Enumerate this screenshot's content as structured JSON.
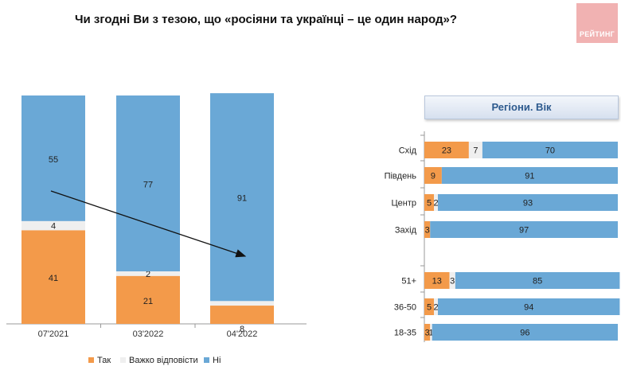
{
  "title": "Чи згодні Ви з тезою, що «росіяни та українці – це один народ»?",
  "logo": {
    "text": "РЕЙТИНГ"
  },
  "colors": {
    "yes": "#f39a4a",
    "hard": "#efefef",
    "no": "#6aa8d6",
    "axis": "#999999"
  },
  "chart_data": [
    {
      "type": "bar",
      "stacked": true,
      "categories": [
        "07'2021",
        "03'2022",
        "04'2022"
      ],
      "series": [
        {
          "name": "Так",
          "values": [
            41,
            21,
            8
          ]
        },
        {
          "name": "Важко відповісти",
          "values": [
            4,
            2,
            2
          ]
        },
        {
          "name": "Ні",
          "values": [
            55,
            77,
            91
          ]
        }
      ],
      "ylim": [
        0,
        100
      ],
      "legend": {
        "position": "bottom",
        "items": [
          "Так",
          "Важко відповісти",
          "Ні"
        ]
      },
      "annotation": "trend-arrow"
    },
    {
      "type": "bar",
      "orientation": "horizontal",
      "stacked": true,
      "title": "Регіони. Вік",
      "categories": [
        "Схід",
        "Південь",
        "Центр",
        "Захід",
        "51+",
        "36-50",
        "18-35"
      ],
      "groups": [
        [
          "Схід",
          "Південь",
          "Центр",
          "Захід"
        ],
        [
          "51+",
          "36-50",
          "18-35"
        ]
      ],
      "series": [
        {
          "name": "Так",
          "values": [
            23,
            9,
            5,
            3,
            13,
            5,
            3
          ]
        },
        {
          "name": "Важко відповісти",
          "values": [
            7,
            0,
            2,
            0,
            3,
            2,
            1
          ]
        },
        {
          "name": "Ні",
          "values": [
            70,
            91,
            93,
            97,
            85,
            94,
            96
          ]
        }
      ],
      "xlim": [
        0,
        100
      ]
    }
  ]
}
